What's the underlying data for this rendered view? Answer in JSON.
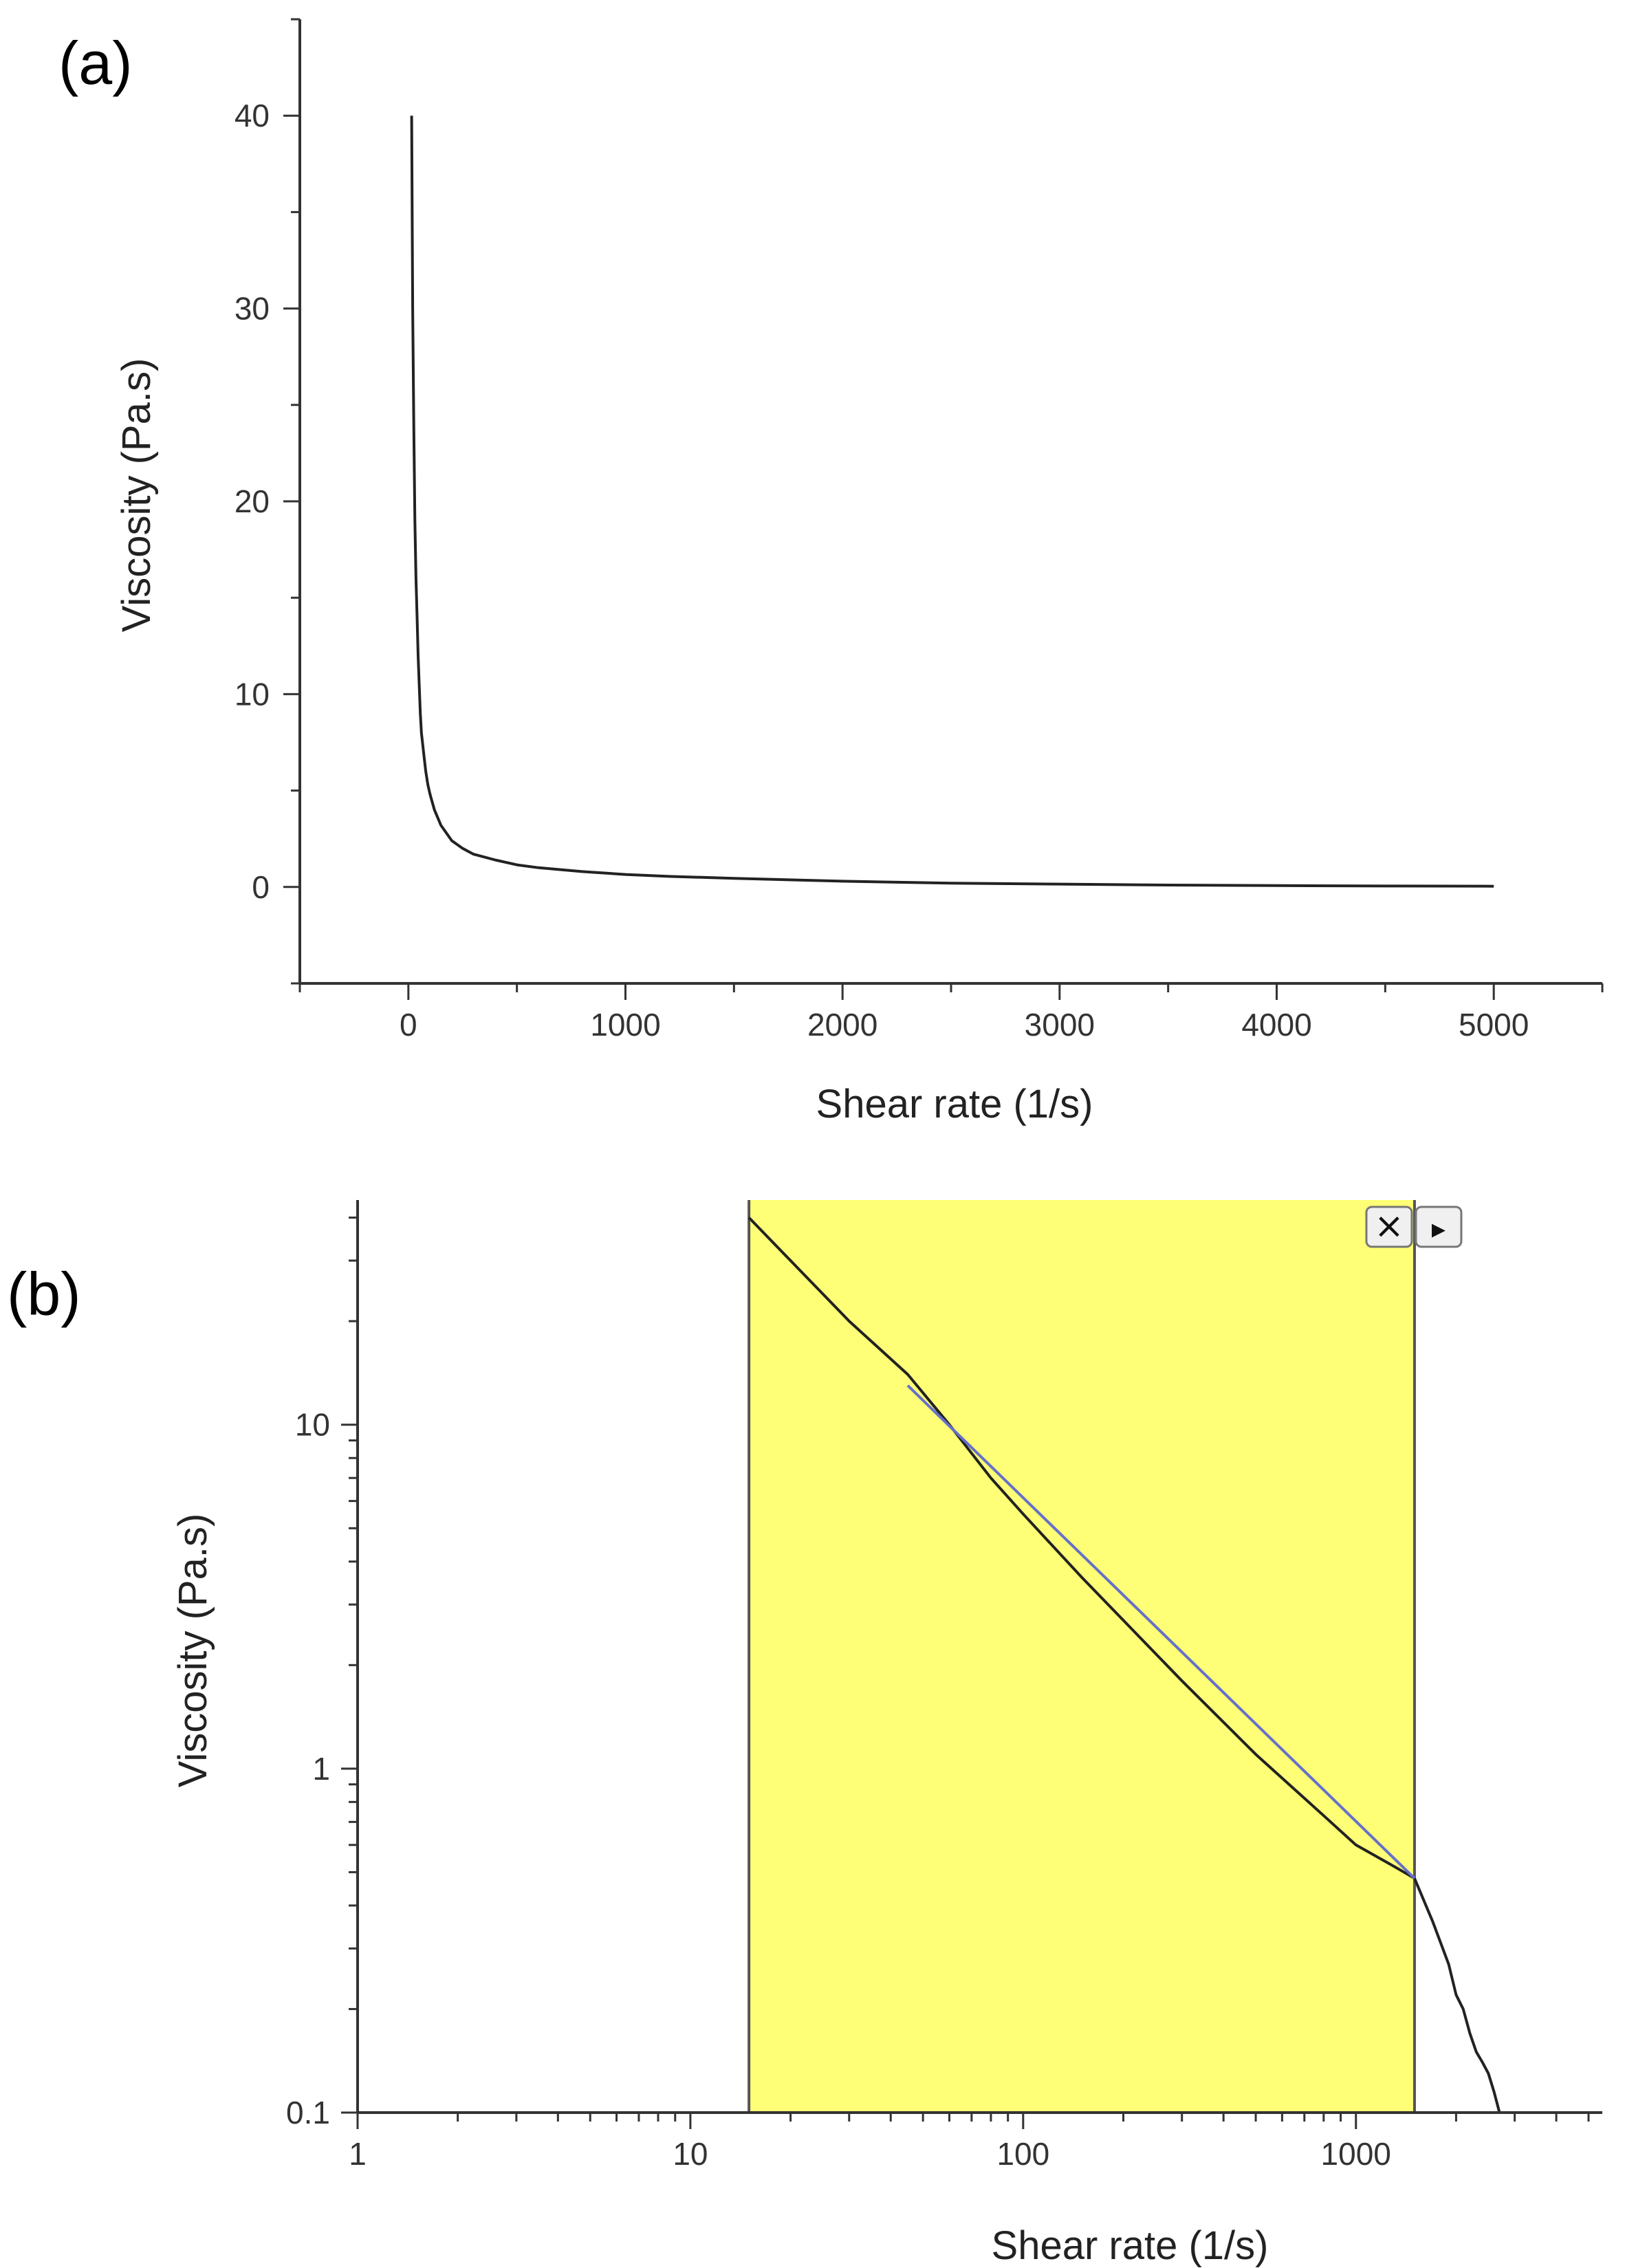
{
  "figure": {
    "panel_a_label": "(a)",
    "panel_b_label": "(b)"
  },
  "chart_data": [
    {
      "type": "line",
      "panel": "(a)",
      "title": "",
      "xlabel": "Shear rate (1/s)",
      "ylabel": "Viscosity (Pa.s)",
      "xlim": [
        -500,
        5500
      ],
      "ylim": [
        -5,
        45
      ],
      "x_ticks": [
        0,
        1000,
        2000,
        3000,
        4000,
        5000
      ],
      "x_tick_labels": [
        "0",
        "1000",
        "2000",
        "3000",
        "4000",
        "5000"
      ],
      "x_minor_ticks": [
        -500,
        500,
        1500,
        2500,
        3500,
        4500,
        5500
      ],
      "y_ticks": [
        0,
        10,
        20,
        30,
        40
      ],
      "y_tick_labels": [
        "0",
        "10",
        "20",
        "30",
        "40"
      ],
      "y_minor_ticks": [
        -5,
        5,
        15,
        25,
        35,
        45
      ],
      "grid": false,
      "legend": "none",
      "series": [
        {
          "color": "#222222",
          "x": [
            15,
            20,
            25,
            30,
            35,
            40,
            45,
            50,
            55,
            60,
            70,
            80,
            90,
            100,
            120,
            150,
            200,
            250,
            300,
            400,
            500,
            600,
            800,
            1000,
            1200,
            1500,
            2000,
            2500,
            3000,
            3500,
            4000,
            4500,
            5000
          ],
          "y": [
            40,
            30,
            24,
            19,
            16,
            14,
            12,
            10.5,
            9,
            8,
            7,
            6,
            5.3,
            4.8,
            4,
            3.2,
            2.4,
            2,
            1.7,
            1.4,
            1.15,
            1.0,
            0.8,
            0.65,
            0.55,
            0.45,
            0.3,
            0.2,
            0.15,
            0.1,
            0.07,
            0.05,
            0.04
          ]
        }
      ]
    },
    {
      "type": "line",
      "panel": "(b)",
      "title": "",
      "xlabel": "Shear rate (1/s)",
      "ylabel": "Viscosity (Pa.s)",
      "x_scale": "log",
      "y_scale": "log",
      "xlim": [
        1,
        5500
      ],
      "ylim": [
        0.1,
        45
      ],
      "x_ticks": [
        1,
        10,
        100,
        1000
      ],
      "x_tick_labels": [
        "1",
        "10",
        "100",
        "1000"
      ],
      "y_ticks": [
        0.1,
        1,
        10
      ],
      "y_tick_labels": [
        "0.1",
        "1",
        "10"
      ],
      "grid": false,
      "legend": "none",
      "highlight_region": {
        "x": [
          15,
          1500
        ],
        "color": "#ffff77"
      },
      "region_buttons": [
        "×",
        "▸"
      ],
      "series": [
        {
          "color": "#222222",
          "x": [
            15,
            20,
            30,
            45,
            60,
            80,
            100,
            150,
            200,
            300,
            500,
            800,
            1000,
            1300,
            1500,
            1700,
            1900,
            2000,
            2100,
            2200,
            2300,
            2400,
            2500,
            2600,
            2700
          ],
          "y": [
            40,
            30,
            20,
            14,
            10,
            7,
            5.5,
            3.6,
            2.7,
            1.8,
            1.1,
            0.73,
            0.6,
            0.52,
            0.48,
            0.36,
            0.27,
            0.22,
            0.2,
            0.17,
            0.15,
            0.14,
            0.13,
            0.115,
            0.1
          ]
        },
        {
          "color": "#6670c8",
          "x": [
            45,
            1500
          ],
          "y": [
            13,
            0.48
          ]
        }
      ]
    }
  ]
}
